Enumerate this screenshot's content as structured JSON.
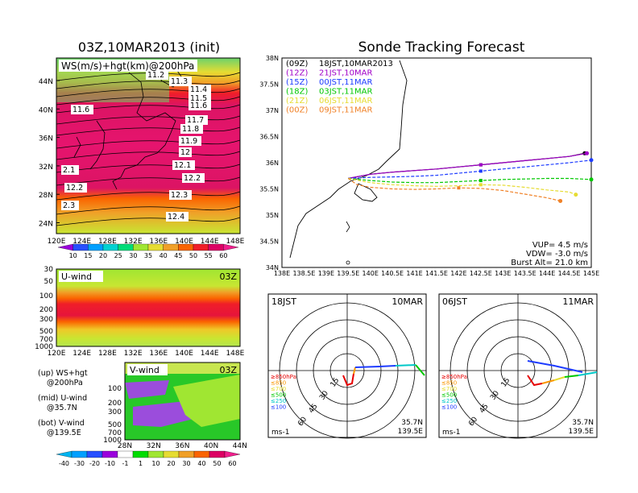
{
  "left": {
    "main_title": "03Z,10MAR2013 (init)",
    "map_label": "WS(m/s)+hgt(km)@200hPa",
    "lat_ticks": [
      "44N",
      "40N",
      "36N",
      "32N",
      "28N",
      "24N"
    ],
    "lon_ticks": [
      "120E",
      "124E",
      "128E",
      "132E",
      "136E",
      "140E",
      "144E",
      "148E"
    ],
    "contour_labels": [
      "11.2",
      "11.3",
      "11.4",
      "11.5",
      "11.6",
      "11.6",
      "11.7",
      "11.8",
      "11.9",
      "12",
      "12.1",
      "12.2",
      "2.1",
      "12.2",
      "12.3",
      "2.3",
      "12.4"
    ],
    "ws_colorbar": [
      "10",
      "15",
      "20",
      "25",
      "30",
      "35",
      "40",
      "45",
      "50",
      "55",
      "60"
    ],
    "uwind_label": "U-wind",
    "uwind_time": "03Z",
    "uwind_yticks": [
      "30",
      "50",
      "100",
      "200",
      "300",
      "500",
      "700",
      "1000"
    ],
    "vwind_label": "V-wind",
    "vwind_time": "03Z",
    "vwind_yticks": [
      "100",
      "200",
      "300",
      "500",
      "700",
      "1000"
    ],
    "vwind_xticks": [
      "28N",
      "32N",
      "36N",
      "40N",
      "44N"
    ],
    "legend_lines": [
      "(up) WS+hgt",
      "@200hPa",
      "(mid) U-wind",
      "@35.7N",
      "(bot) V-wind",
      "@139.5E"
    ],
    "wind_colorbar": [
      "-40",
      "-30",
      "-20",
      "-10",
      "-1",
      "1",
      "10",
      "20",
      "30",
      "40",
      "50",
      "60"
    ],
    "colors": {
      "ws_scale": [
        "#9b00dc",
        "#2850ff",
        "#00a0ff",
        "#00d2d2",
        "#00dc78",
        "#a0e632",
        "#e6dc32",
        "#f0a028",
        "#fa6400",
        "#f01e28",
        "#dc0064",
        "#f01e8c"
      ],
      "wind_scale": [
        "#00b4f0",
        "#00a0ff",
        "#2850ff",
        "#9b00dc",
        "#ffffff",
        "#00dc00",
        "#a0e632",
        "#e6dc32",
        "#f0a028",
        "#fa6400",
        "#dc0064",
        "#f01e8c"
      ]
    }
  },
  "right": {
    "title": "Sonde Tracking Forecast",
    "legend": [
      {
        "code": "(09Z)",
        "text": "18JST,10MAR2013",
        "color": "#000000"
      },
      {
        "code": "(12Z)",
        "text": "21JST,10MAR",
        "color": "#a000c8"
      },
      {
        "code": "(15Z)",
        "text": "00JST,11MAR",
        "color": "#1e3cff"
      },
      {
        "code": "(18Z)",
        "text": "03JST,11MAR",
        "color": "#00c800"
      },
      {
        "code": "(21Z)",
        "text": "06JST,11MAR",
        "color": "#e6dc32"
      },
      {
        "code": "(00Z)",
        "text": "09JST,11MAR",
        "color": "#f08228"
      }
    ],
    "info": [
      "VUP= 4.5 m/s",
      "VDW= -3.0 m/s",
      "Burst Alt= 21.0 km"
    ]
  },
  "hodographs": [
    {
      "time": "18JST",
      "date": "10MAR",
      "loc": [
        "35.7N",
        "139.5E"
      ],
      "unit": "ms-1",
      "rings": [
        "15",
        "30",
        "45",
        "60"
      ],
      "levels": [
        {
          "t": "≥850hPa",
          "c": "#e60000"
        },
        {
          "t": "≤850",
          "c": "#fa9600"
        },
        {
          "t": "≤700",
          "c": "#e6dc32"
        },
        {
          "t": "≤500",
          "c": "#00c800"
        },
        {
          "t": "≤250",
          "c": "#00c8c8"
        },
        {
          "t": "≤100",
          "c": "#1e3cff"
        }
      ]
    },
    {
      "time": "06JST",
      "date": "11MAR",
      "loc": [
        "35.7N",
        "139.5E"
      ],
      "unit": "ms-1",
      "rings": [
        "15",
        "30",
        "45",
        "60"
      ],
      "levels": [
        {
          "t": "≥850hPa",
          "c": "#e60000"
        },
        {
          "t": "≤850",
          "c": "#fa9600"
        },
        {
          "t": "≤700",
          "c": "#e6dc32"
        },
        {
          "t": "≤500",
          "c": "#00c800"
        },
        {
          "t": "≤250",
          "c": "#00c8c8"
        },
        {
          "t": "≤100",
          "c": "#1e3cff"
        }
      ]
    }
  ],
  "chart_data": [
    {
      "type": "heatmap",
      "title": "03Z,10MAR2013 (init)",
      "subtitle": "WS(m/s)+hgt(km)@200hPa",
      "x_ticks": [
        "120E",
        "124E",
        "128E",
        "132E",
        "136E",
        "140E",
        "144E",
        "148E"
      ],
      "y_ticks": [
        "24N",
        "28N",
        "32N",
        "36N",
        "40N",
        "44N"
      ],
      "colorbar": [
        10,
        15,
        20,
        25,
        30,
        35,
        40,
        45,
        50,
        55,
        60
      ],
      "contour_labels": [
        11.2,
        11.3,
        11.4,
        11.5,
        11.6,
        11.7,
        11.8,
        11.9,
        12,
        12.1,
        12.2,
        12.3,
        12.4
      ]
    },
    {
      "type": "heatmap",
      "title": "U-wind",
      "x_ticks": [
        "120E",
        "124E",
        "128E",
        "132E",
        "136E",
        "140E",
        "144E",
        "148E"
      ],
      "y_ticks": [
        30,
        50,
        100,
        200,
        300,
        500,
        700,
        1000
      ]
    },
    {
      "type": "heatmap",
      "title": "V-wind",
      "x_ticks": [
        "28N",
        "32N",
        "36N",
        "40N",
        "44N"
      ],
      "y_ticks": [
        100,
        200,
        300,
        500,
        700,
        1000
      ],
      "colorbar": [
        -40,
        -30,
        -20,
        -10,
        -1,
        1,
        10,
        20,
        30,
        40,
        50,
        60
      ]
    },
    {
      "type": "line",
      "title": "Sonde Tracking Forecast",
      "xlabel": "",
      "ylabel": "",
      "xlim": [
        138,
        145
      ],
      "ylim": [
        34,
        38
      ],
      "x_ticks": [
        "138E",
        "138.5E",
        "139E",
        "139.5E",
        "140E",
        "140.5E",
        "141E",
        "141.5E",
        "142E",
        "142.5E",
        "143E",
        "143.5E",
        "144E",
        "144.5E",
        "145E"
      ],
      "y_ticks": [
        "34N",
        "34.5N",
        "35N",
        "35.5N",
        "36N",
        "36.5N",
        "37N",
        "37.5N",
        "38N"
      ],
      "series": [
        {
          "name": "18JST,10MAR2013",
          "color": "#000000",
          "x": [
            139.5,
            140.0,
            140.5,
            141.0,
            141.5,
            142.0,
            142.5,
            143.0,
            143.5,
            144.0,
            144.5,
            144.85
          ],
          "y": [
            35.7,
            35.78,
            35.82,
            35.85,
            35.88,
            35.92,
            35.96,
            36.0,
            36.04,
            36.08,
            36.12,
            36.18
          ]
        },
        {
          "name": "21JST,10MAR",
          "color": "#a000c8",
          "x": [
            139.5,
            140.0,
            140.5,
            141.0,
            141.5,
            142.0,
            142.5,
            143.0,
            143.5,
            144.0,
            144.5,
            144.9
          ],
          "y": [
            35.7,
            35.78,
            35.82,
            35.85,
            35.88,
            35.92,
            35.96,
            36.0,
            36.04,
            36.08,
            36.12,
            36.18
          ]
        },
        {
          "name": "00JST,11MAR",
          "color": "#1e3cff",
          "x": [
            139.5,
            140.0,
            140.5,
            141.0,
            141.5,
            142.0,
            142.5,
            143.0,
            143.5,
            144.0,
            144.5,
            145.0
          ],
          "y": [
            35.7,
            35.72,
            35.73,
            35.74,
            35.76,
            35.8,
            35.84,
            35.88,
            35.92,
            35.96,
            36.0,
            36.05
          ]
        },
        {
          "name": "03JST,11MAR",
          "color": "#00c800",
          "x": [
            139.5,
            140.0,
            140.5,
            141.0,
            141.5,
            142.0,
            142.5,
            143.0,
            143.5,
            144.0,
            144.5,
            145.0
          ],
          "y": [
            35.7,
            35.66,
            35.63,
            35.62,
            35.62,
            35.64,
            35.66,
            35.68,
            35.69,
            35.7,
            35.7,
            35.68
          ]
        },
        {
          "name": "06JST,11MAR",
          "color": "#e6dc32",
          "x": [
            139.5,
            140.0,
            140.5,
            141.0,
            141.5,
            142.0,
            142.5,
            143.0,
            143.5,
            144.0,
            144.5,
            144.65
          ],
          "y": [
            35.7,
            35.62,
            35.58,
            35.56,
            35.55,
            35.56,
            35.58,
            35.57,
            35.53,
            35.48,
            35.44,
            35.39
          ]
        },
        {
          "name": "09JST,11MAR",
          "color": "#f08228",
          "x": [
            139.5,
            139.7,
            140.0,
            140.5,
            141.0,
            141.5,
            142.0,
            142.5,
            143.0,
            143.5,
            144.0,
            144.3
          ],
          "y": [
            35.7,
            35.58,
            35.53,
            35.5,
            35.49,
            35.5,
            35.52,
            35.51,
            35.47,
            35.4,
            35.33,
            35.27
          ]
        }
      ]
    }
  ]
}
